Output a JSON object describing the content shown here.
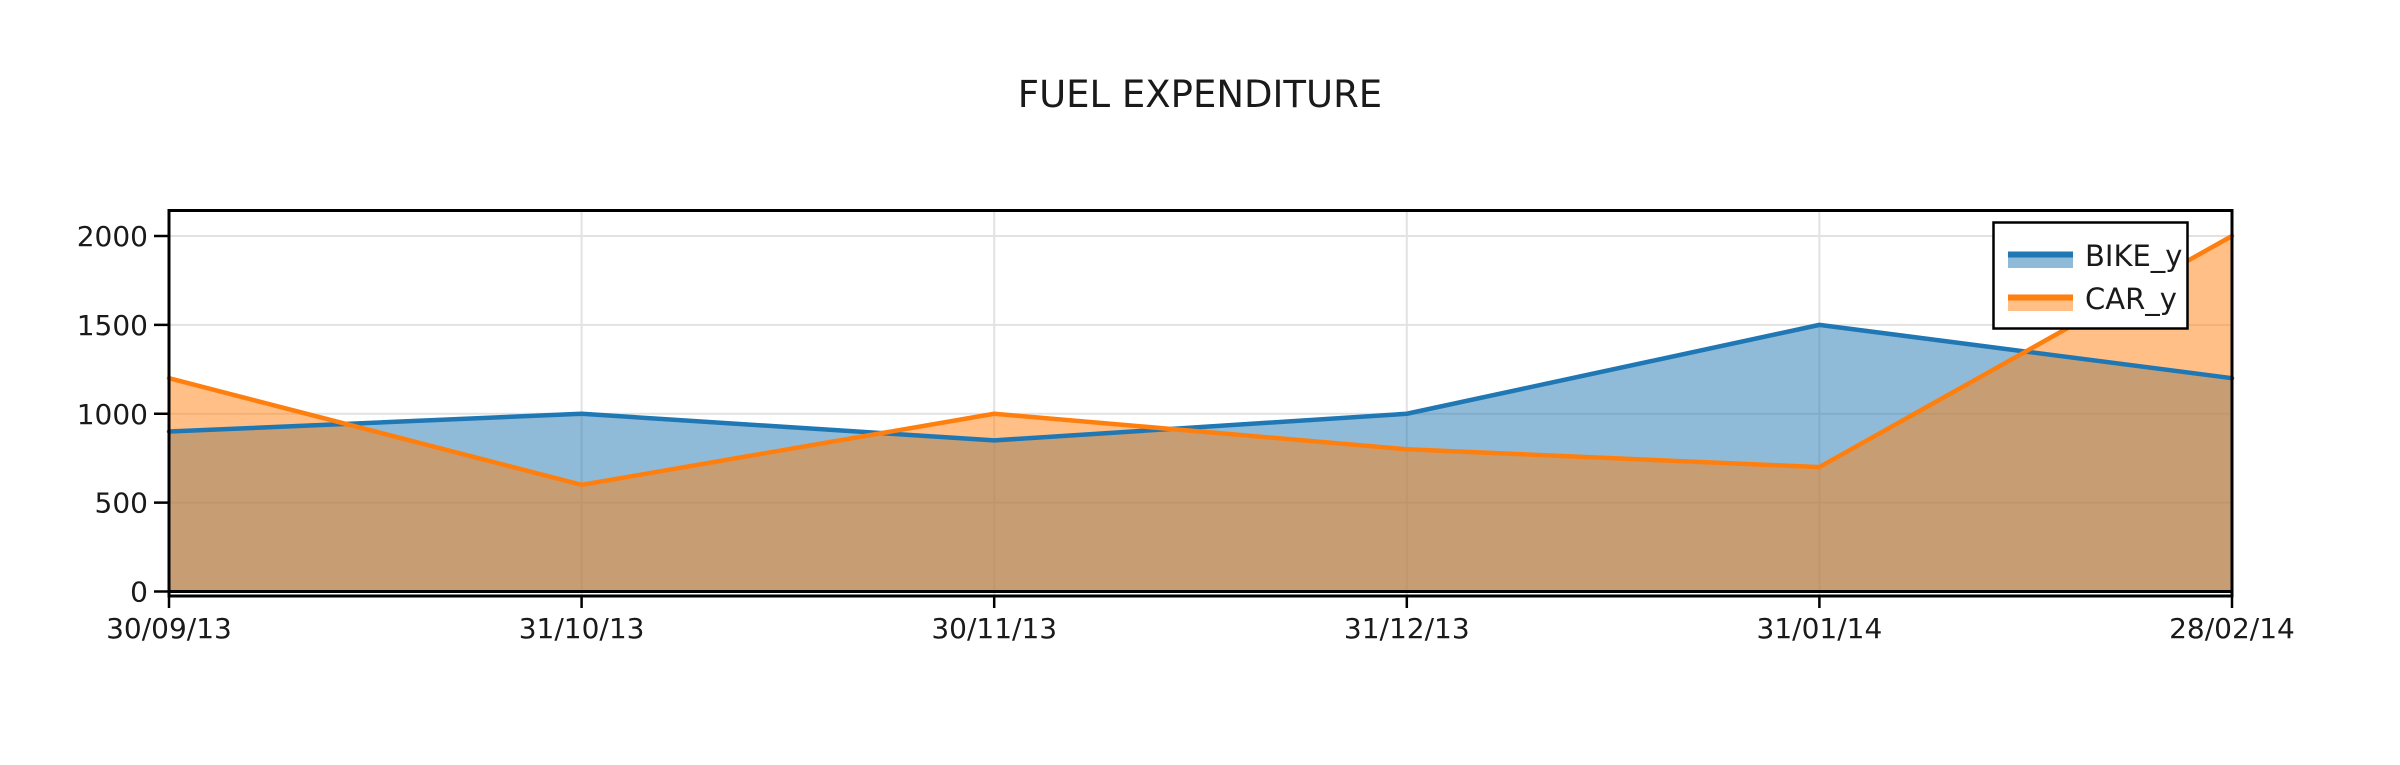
{
  "chart_data": {
    "type": "area",
    "title": "FUEL EXPENDITURE",
    "categories": [
      "30/09/13",
      "31/10/13",
      "30/11/13",
      "31/12/13",
      "31/01/14",
      "28/02/14"
    ],
    "series": [
      {
        "name": "BIKE_y",
        "values": [
          900,
          1000,
          850,
          1000,
          1500,
          1200
        ],
        "line_color": "#1f77b4",
        "fill_color": "#1f77b4",
        "fill_opacity": 0.5
      },
      {
        "name": "CAR_y",
        "values": [
          1200,
          600,
          1000,
          800,
          700,
          2000
        ],
        "line_color": "#ff7f0e",
        "fill_color": "#ff7f0e",
        "fill_opacity": 0.5
      }
    ],
    "xlabel": "",
    "ylabel": "",
    "y_ticks": [
      0,
      500,
      1000,
      1500,
      2000
    ],
    "ylim": [
      0,
      2143
    ],
    "grid": true,
    "legend_position": "top-right",
    "legend_entries": [
      "BIKE_y",
      "CAR_y"
    ],
    "colors": {
      "grid": "#e2e2e2",
      "axis": "#000000",
      "text": "#1a1a1a",
      "legend_border": "#000000",
      "legend_background": "#ffffff",
      "background": "#ffffff"
    }
  }
}
